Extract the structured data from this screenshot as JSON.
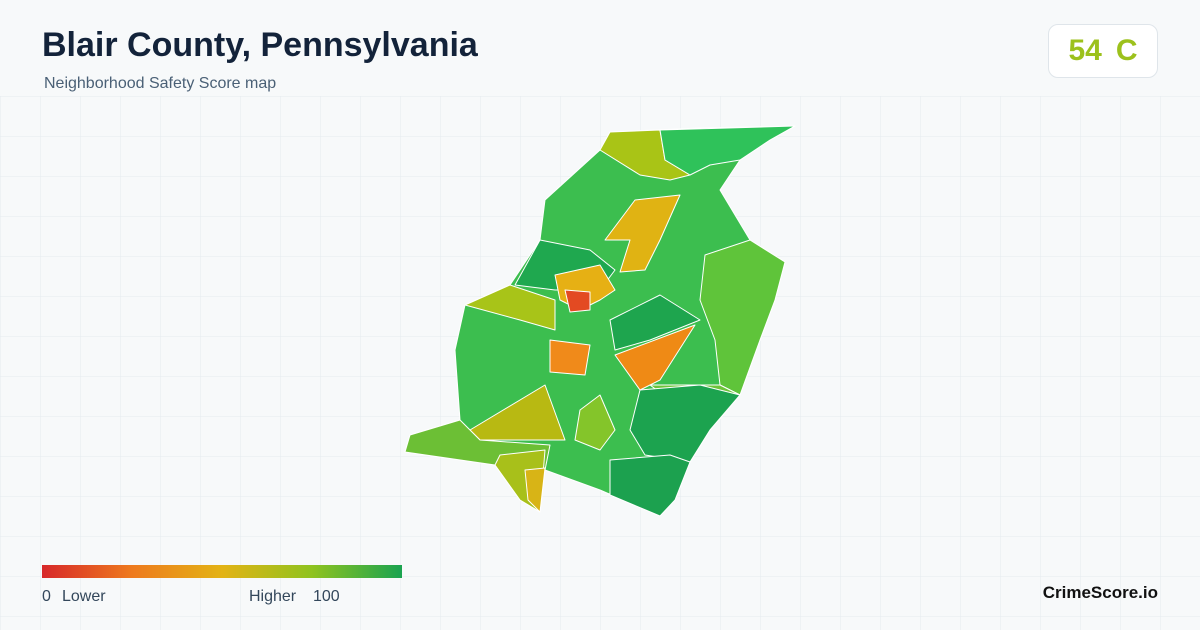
{
  "header": {
    "title": "Blair County, Pennsylvania",
    "subtitle": "Neighborhood Safety Score map"
  },
  "score": {
    "value": 54,
    "grade": "C"
  },
  "legend": {
    "min": 0,
    "min_label": "Lower",
    "max_label": "Higher",
    "max": 100
  },
  "brand": "CrimeScore.io"
}
